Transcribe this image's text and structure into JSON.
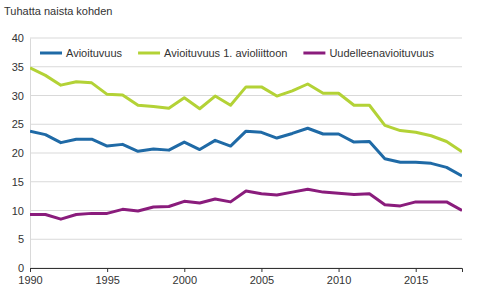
{
  "chart_data": {
    "type": "line",
    "y_label": "Tuhatta naista kohden",
    "x": [
      1990,
      1991,
      1992,
      1993,
      1994,
      1995,
      1996,
      1997,
      1998,
      1999,
      2000,
      2001,
      2002,
      2003,
      2004,
      2005,
      2006,
      2007,
      2008,
      2009,
      2010,
      2011,
      2012,
      2013,
      2014,
      2015,
      2016,
      2017,
      2018
    ],
    "series": [
      {
        "name": "Avioituvuus",
        "color": "#1f6aa6",
        "values": [
          23.8,
          23.2,
          21.8,
          22.4,
          22.4,
          21.2,
          21.5,
          20.3,
          20.7,
          20.5,
          21.9,
          20.6,
          22.2,
          21.2,
          23.8,
          23.6,
          22.6,
          23.4,
          24.3,
          23.3,
          23.3,
          21.9,
          22.0,
          19.0,
          18.4,
          18.4,
          18.2,
          17.5,
          16.0
        ]
      },
      {
        "name": "Avioituvuus 1. avioliittoon",
        "color": "#b3d236",
        "values": [
          34.8,
          33.5,
          31.8,
          32.4,
          32.2,
          30.2,
          30.1,
          28.3,
          28.1,
          27.8,
          29.6,
          27.7,
          29.9,
          28.3,
          31.5,
          31.5,
          29.9,
          30.8,
          32.0,
          30.4,
          30.4,
          28.3,
          28.3,
          24.8,
          23.9,
          23.6,
          23.0,
          22.0,
          20.2
        ]
      },
      {
        "name": "Uudelleenavioituvuus",
        "color": "#8a1c7c",
        "values": [
          9.3,
          9.3,
          8.5,
          9.3,
          9.5,
          9.5,
          10.2,
          9.9,
          10.6,
          10.7,
          11.6,
          11.3,
          12.0,
          11.5,
          13.4,
          12.9,
          12.7,
          13.2,
          13.7,
          13.2,
          13.0,
          12.8,
          12.9,
          11.0,
          10.8,
          11.5,
          11.5,
          11.5,
          10.0
        ]
      }
    ],
    "xlim": [
      1990,
      2018
    ],
    "xticks": [
      1990,
      1995,
      2000,
      2005,
      2010,
      2015
    ],
    "ylim": [
      0,
      40
    ],
    "yticks": [
      0,
      5,
      10,
      15,
      20,
      25,
      30,
      35,
      40
    ],
    "grid": true,
    "legend": "top"
  }
}
